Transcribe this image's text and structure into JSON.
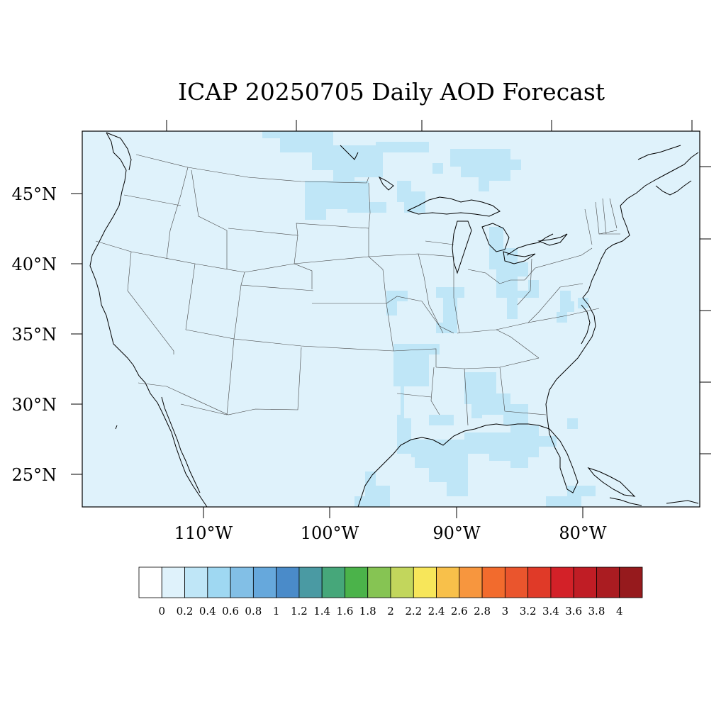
{
  "title": "ICAP 20250705 Daily AOD Forecast",
  "map": {
    "lat_labels": [
      "45°N",
      "40°N",
      "35°N",
      "30°N",
      "25°N"
    ],
    "lon_labels": [
      "110°W",
      "100°W",
      "90°W",
      "80°W"
    ],
    "background_color": "#dff2fb",
    "patch_color": "#bfe6f7"
  },
  "colorbar": {
    "colors": [
      "#ffffff",
      "#dff2fb",
      "#bfe6f7",
      "#9fd8f2",
      "#82bfe6",
      "#66a8dc",
      "#4a8bc9",
      "#4a9aa3",
      "#46a77a",
      "#4bb34a",
      "#86c453",
      "#c2d65c",
      "#f7e65a",
      "#f8c04a",
      "#f7963e",
      "#f26b2d",
      "#ea552d",
      "#e03a28",
      "#d32128",
      "#c01d25",
      "#aa1c21",
      "#961a1d"
    ],
    "labels": [
      "0",
      "0.2",
      "0.4",
      "0.6",
      "0.8",
      "1",
      "1.2",
      "1.4",
      "1.6",
      "1.8",
      "2",
      "2.2",
      "2.4",
      "2.6",
      "2.8",
      "3",
      "3.2",
      "3.4",
      "3.6",
      "3.8",
      "4"
    ]
  }
}
